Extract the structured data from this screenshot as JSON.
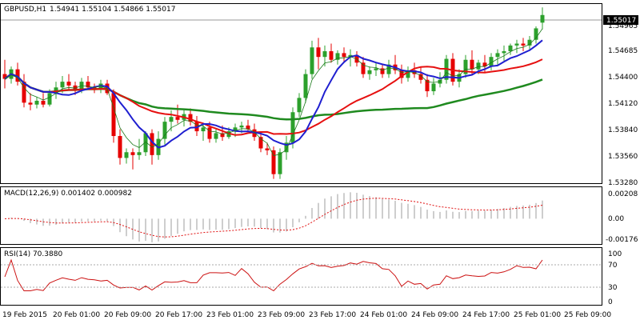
{
  "header": {
    "symbol": "GBPUSD,H1",
    "ohlc": "1.54941 1.55104 1.54866 1.55017"
  },
  "price_axis": {
    "current_price": "1.55017",
    "labels": [
      "1.54965",
      "1.54685",
      "1.54400",
      "1.54120",
      "1.53840",
      "1.53560",
      "1.53280"
    ]
  },
  "macd_panel": {
    "title": "MACD(12,26,9) 0.001402 0.000982",
    "labels": [
      "0.00208",
      "0.00",
      "-0.00176"
    ]
  },
  "rsi_panel": {
    "title": "RSI(14) 70.3880",
    "labels": [
      "100",
      "70",
      "30",
      "0"
    ]
  },
  "time_axis": {
    "labels": [
      "19 Feb 2015",
      "20 Feb 01:00",
      "20 Feb 09:00",
      "20 Feb 17:00",
      "23 Feb 01:00",
      "23 Feb 09:00",
      "23 Feb 17:00",
      "24 Feb 01:00",
      "24 Feb 09:00",
      "24 Feb 17:00",
      "25 Feb 01:00",
      "25 Feb 09:00"
    ]
  },
  "colors": {
    "bull": "#2ca02c",
    "bear": "#e60000",
    "ma_fast": "#1f1fd0",
    "ma_mid": "#e61010",
    "ma_slow": "#1f8a1f",
    "ma_thin": "#1a7a1a",
    "macd_signal": "#e01010",
    "macd_hist": "#bdbdbd",
    "rsi_line": "#cc1010"
  },
  "chart_data": {
    "type": "candlestick",
    "price_range": [
      1.5328,
      1.5506
    ],
    "candles": [
      [
        1.544,
        1.5455,
        1.5425,
        1.5435
      ],
      [
        1.5435,
        1.5448,
        1.543,
        1.5445
      ],
      [
        1.5445,
        1.5452,
        1.5428,
        1.5432
      ],
      [
        1.5432,
        1.544,
        1.5405,
        1.541
      ],
      [
        1.541,
        1.542,
        1.5402,
        1.5408
      ],
      [
        1.5408,
        1.5416,
        1.5404,
        1.5412
      ],
      [
        1.5412,
        1.542,
        1.5405,
        1.5408
      ],
      [
        1.5408,
        1.5424,
        1.5406,
        1.542
      ],
      [
        1.542,
        1.5432,
        1.5414,
        1.5426
      ],
      [
        1.5426,
        1.5438,
        1.542,
        1.5432
      ],
      [
        1.5432,
        1.544,
        1.5424,
        1.5428
      ],
      [
        1.5428,
        1.5432,
        1.5418,
        1.5424
      ],
      [
        1.5424,
        1.5436,
        1.542,
        1.5432
      ],
      [
        1.5432,
        1.5438,
        1.5424,
        1.5426
      ],
      [
        1.5426,
        1.543,
        1.542,
        1.5424
      ],
      [
        1.5424,
        1.5434,
        1.542,
        1.543
      ],
      [
        1.543,
        1.5434,
        1.5418,
        1.542
      ],
      [
        1.542,
        1.5424,
        1.5368,
        1.5375
      ],
      [
        1.5375,
        1.5382,
        1.5345,
        1.5352
      ],
      [
        1.5352,
        1.5362,
        1.5346,
        1.5358
      ],
      [
        1.5358,
        1.5362,
        1.534,
        1.5355
      ],
      [
        1.5355,
        1.5372,
        1.535,
        1.5358
      ],
      [
        1.5358,
        1.538,
        1.5354,
        1.5378
      ],
      [
        1.5378,
        1.5382,
        1.5345,
        1.5355
      ],
      [
        1.5355,
        1.538,
        1.535,
        1.5372
      ],
      [
        1.5372,
        1.5395,
        1.5366,
        1.539
      ],
      [
        1.539,
        1.5402,
        1.538,
        1.5395
      ],
      [
        1.5395,
        1.5408,
        1.5388,
        1.5392
      ],
      [
        1.5392,
        1.5402,
        1.5385,
        1.5398
      ],
      [
        1.5398,
        1.5404,
        1.5386,
        1.539
      ],
      [
        1.539,
        1.5396,
        1.5375,
        1.538
      ],
      [
        1.538,
        1.5388,
        1.537,
        1.5384
      ],
      [
        1.5384,
        1.539,
        1.5368,
        1.5372
      ],
      [
        1.5372,
        1.5382,
        1.5368,
        1.5378
      ],
      [
        1.5378,
        1.5386,
        1.537,
        1.5374
      ],
      [
        1.5374,
        1.5384,
        1.5372,
        1.538
      ],
      [
        1.538,
        1.5388,
        1.5374,
        1.5384
      ],
      [
        1.5384,
        1.539,
        1.5378,
        1.5386
      ],
      [
        1.5386,
        1.5392,
        1.538,
        1.5382
      ],
      [
        1.5382,
        1.5388,
        1.537,
        1.5374
      ],
      [
        1.5374,
        1.538,
        1.5358,
        1.5362
      ],
      [
        1.5362,
        1.5368,
        1.5355,
        1.536
      ],
      [
        1.536,
        1.5364,
        1.533,
        1.5335
      ],
      [
        1.5335,
        1.5362,
        1.533,
        1.5358
      ],
      [
        1.5358,
        1.5375,
        1.535,
        1.5368
      ],
      [
        1.5368,
        1.5405,
        1.5362,
        1.54
      ],
      [
        1.54,
        1.542,
        1.5395,
        1.5415
      ],
      [
        1.5415,
        1.5445,
        1.541,
        1.544
      ],
      [
        1.544,
        1.5475,
        1.5435,
        1.5468
      ],
      [
        1.5468,
        1.5478,
        1.5445,
        1.5458
      ],
      [
        1.5458,
        1.547,
        1.5448,
        1.5464
      ],
      [
        1.5464,
        1.5472,
        1.5452,
        1.5455
      ],
      [
        1.5455,
        1.5465,
        1.545,
        1.5462
      ],
      [
        1.5462,
        1.5468,
        1.5452,
        1.5458
      ],
      [
        1.5458,
        1.5466,
        1.5448,
        1.546
      ],
      [
        1.546,
        1.5464,
        1.5448,
        1.5452
      ],
      [
        1.5452,
        1.5458,
        1.5436,
        1.544
      ],
      [
        1.544,
        1.5448,
        1.5434,
        1.5444
      ],
      [
        1.5444,
        1.5452,
        1.5438,
        1.5446
      ],
      [
        1.5446,
        1.545,
        1.5436,
        1.544
      ],
      [
        1.544,
        1.5455,
        1.5436,
        1.545
      ],
      [
        1.545,
        1.546,
        1.544,
        1.5444
      ],
      [
        1.5444,
        1.545,
        1.543,
        1.5436
      ],
      [
        1.5436,
        1.5448,
        1.5432,
        1.5444
      ],
      [
        1.5444,
        1.5452,
        1.5436,
        1.544
      ],
      [
        1.544,
        1.5448,
        1.543,
        1.5434
      ],
      [
        1.5434,
        1.544,
        1.5416,
        1.5422
      ],
      [
        1.5422,
        1.5436,
        1.5418,
        1.543
      ],
      [
        1.543,
        1.5442,
        1.5426,
        1.5434
      ],
      [
        1.5434,
        1.546,
        1.543,
        1.5456
      ],
      [
        1.5456,
        1.5462,
        1.5428,
        1.5432
      ],
      [
        1.5432,
        1.5445,
        1.5426,
        1.544
      ],
      [
        1.544,
        1.546,
        1.5436,
        1.5455
      ],
      [
        1.5455,
        1.5465,
        1.544,
        1.5445
      ],
      [
        1.5445,
        1.5455,
        1.544,
        1.5452
      ],
      [
        1.5452,
        1.546,
        1.5442,
        1.5448
      ],
      [
        1.5448,
        1.5462,
        1.5444,
        1.5458
      ],
      [
        1.5458,
        1.5466,
        1.545,
        1.5462
      ],
      [
        1.5462,
        1.547,
        1.5454,
        1.5464
      ],
      [
        1.5464,
        1.5472,
        1.546,
        1.547
      ],
      [
        1.547,
        1.5476,
        1.5462,
        1.5472
      ],
      [
        1.5472,
        1.5478,
        1.5464,
        1.547
      ],
      [
        1.547,
        1.548,
        1.5466,
        1.5476
      ],
      [
        1.5476,
        1.549,
        1.5472,
        1.5488
      ],
      [
        1.5494,
        1.551,
        1.5487,
        1.5502
      ]
    ]
  }
}
